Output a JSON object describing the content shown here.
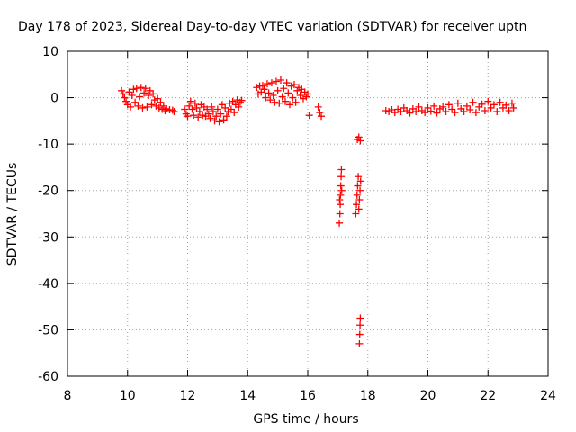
{
  "chart_data": {
    "type": "scatter",
    "title": "Day 178 of 2023, Sidereal Day-to-day VTEC variation (SDTVAR) for receiver uptn",
    "xlabel": "GPS time / hours",
    "ylabel": "SDTVAR / TECUs",
    "xlim": [
      8,
      24
    ],
    "ylim": [
      -60,
      10
    ],
    "xticks": [
      8,
      10,
      12,
      14,
      16,
      18,
      20,
      22,
      24
    ],
    "yticks": [
      10,
      0,
      -10,
      -20,
      -30,
      -40,
      -50,
      -60
    ],
    "grid": true,
    "marker": "+",
    "series": [
      {
        "name": "SDTVAR",
        "color": "#ff0000",
        "points": [
          [
            9.8,
            1.5
          ],
          [
            9.85,
            0.8
          ],
          [
            9.9,
            0.0
          ],
          [
            9.95,
            -0.8
          ],
          [
            10.0,
            -1.5
          ],
          [
            10.05,
            1.2
          ],
          [
            10.1,
            -2.0
          ],
          [
            10.15,
            0.5
          ],
          [
            10.2,
            1.8
          ],
          [
            10.25,
            -1.0
          ],
          [
            10.3,
            2.0
          ],
          [
            10.35,
            -1.8
          ],
          [
            10.4,
            0.2
          ],
          [
            10.45,
            2.2
          ],
          [
            10.5,
            -2.2
          ],
          [
            10.55,
            1.0
          ],
          [
            10.6,
            2.0
          ],
          [
            10.65,
            -2.0
          ],
          [
            10.7,
            0.5
          ],
          [
            10.75,
            1.5
          ],
          [
            10.8,
            -1.5
          ],
          [
            10.85,
            0.8
          ],
          [
            10.9,
            -0.5
          ],
          [
            10.95,
            -1.8
          ],
          [
            11.0,
            -0.2
          ],
          [
            11.05,
            -2.2
          ],
          [
            11.1,
            -1.0
          ],
          [
            11.15,
            -2.5
          ],
          [
            11.2,
            -1.8
          ],
          [
            11.25,
            -2.8
          ],
          [
            11.3,
            -2.4
          ],
          [
            11.4,
            -2.6
          ],
          [
            11.5,
            -2.7
          ],
          [
            11.55,
            -3.0
          ],
          [
            11.9,
            -2.5
          ],
          [
            11.95,
            -3.5
          ],
          [
            12.0,
            -4.0
          ],
          [
            12.05,
            -1.8
          ],
          [
            12.1,
            -0.8
          ],
          [
            12.15,
            -2.5
          ],
          [
            12.2,
            -3.8
          ],
          [
            12.25,
            -1.2
          ],
          [
            12.3,
            -2.2
          ],
          [
            12.35,
            -4.2
          ],
          [
            12.4,
            -3.0
          ],
          [
            12.45,
            -1.5
          ],
          [
            12.5,
            -3.8
          ],
          [
            12.55,
            -2.0
          ],
          [
            12.6,
            -4.0
          ],
          [
            12.65,
            -2.5
          ],
          [
            12.7,
            -3.5
          ],
          [
            12.75,
            -4.5
          ],
          [
            12.8,
            -2.0
          ],
          [
            12.85,
            -3.0
          ],
          [
            12.9,
            -5.0
          ],
          [
            12.95,
            -4.0
          ],
          [
            13.0,
            -2.5
          ],
          [
            13.05,
            -5.2
          ],
          [
            13.1,
            -3.5
          ],
          [
            13.15,
            -1.5
          ],
          [
            13.2,
            -4.8
          ],
          [
            13.25,
            -2.2
          ],
          [
            13.3,
            -4.0
          ],
          [
            13.35,
            -3.0
          ],
          [
            13.4,
            -1.2
          ],
          [
            13.45,
            -2.5
          ],
          [
            13.5,
            -0.8
          ],
          [
            13.55,
            -3.2
          ],
          [
            13.6,
            -1.5
          ],
          [
            13.65,
            -0.5
          ],
          [
            13.7,
            -2.0
          ],
          [
            13.75,
            -1.0
          ],
          [
            13.8,
            -0.6
          ],
          [
            14.3,
            2.2
          ],
          [
            14.35,
            0.8
          ],
          [
            14.4,
            2.5
          ],
          [
            14.45,
            1.2
          ],
          [
            14.5,
            2.6
          ],
          [
            14.55,
            1.8
          ],
          [
            14.6,
            0.0
          ],
          [
            14.65,
            3.0
          ],
          [
            14.7,
            1.0
          ],
          [
            14.75,
            -0.5
          ],
          [
            14.8,
            3.2
          ],
          [
            14.85,
            0.5
          ],
          [
            14.9,
            -1.0
          ],
          [
            14.95,
            3.5
          ],
          [
            15.0,
            1.5
          ],
          [
            15.05,
            -1.2
          ],
          [
            15.1,
            3.8
          ],
          [
            15.15,
            0.2
          ],
          [
            15.2,
            2.0
          ],
          [
            15.25,
            -0.8
          ],
          [
            15.3,
            3.2
          ],
          [
            15.35,
            1.0
          ],
          [
            15.4,
            -1.5
          ],
          [
            15.45,
            2.5
          ],
          [
            15.5,
            0.0
          ],
          [
            15.55,
            2.8
          ],
          [
            15.6,
            -1.0
          ],
          [
            15.65,
            1.5
          ],
          [
            15.7,
            2.2
          ],
          [
            15.75,
            0.5
          ],
          [
            15.8,
            1.8
          ],
          [
            15.85,
            -0.2
          ],
          [
            15.9,
            1.2
          ],
          [
            15.95,
            0.2
          ],
          [
            16.0,
            0.8
          ],
          [
            16.05,
            -3.8
          ],
          [
            16.35,
            -2.0
          ],
          [
            16.4,
            -3.2
          ],
          [
            16.45,
            -4.0
          ],
          [
            17.05,
            -27
          ],
          [
            17.07,
            -25
          ],
          [
            17.08,
            -23
          ],
          [
            17.09,
            -21
          ],
          [
            17.1,
            -19
          ],
          [
            17.11,
            -17
          ],
          [
            17.12,
            -15.5
          ],
          [
            17.06,
            -22
          ],
          [
            17.13,
            -20
          ],
          [
            17.6,
            -25
          ],
          [
            17.62,
            -23
          ],
          [
            17.64,
            -21
          ],
          [
            17.66,
            -19
          ],
          [
            17.68,
            -17
          ],
          [
            17.7,
            -24
          ],
          [
            17.72,
            -22
          ],
          [
            17.74,
            -20
          ],
          [
            17.76,
            -18
          ],
          [
            17.65,
            -9
          ],
          [
            17.7,
            -8.5
          ],
          [
            17.75,
            -9.3
          ],
          [
            17.72,
            -53
          ],
          [
            17.73,
            -51
          ],
          [
            17.74,
            -49
          ],
          [
            17.75,
            -47.5
          ],
          [
            18.6,
            -2.8
          ],
          [
            18.7,
            -3.0
          ],
          [
            18.8,
            -2.6
          ],
          [
            18.9,
            -3.2
          ],
          [
            19.0,
            -2.5
          ],
          [
            19.1,
            -3.0
          ],
          [
            19.2,
            -2.2
          ],
          [
            19.3,
            -2.8
          ],
          [
            19.4,
            -3.3
          ],
          [
            19.5,
            -2.4
          ],
          [
            19.6,
            -3.0
          ],
          [
            19.7,
            -2.0
          ],
          [
            19.8,
            -2.8
          ],
          [
            19.9,
            -3.2
          ],
          [
            20.0,
            -2.2
          ],
          [
            20.1,
            -2.9
          ],
          [
            20.2,
            -1.8
          ],
          [
            20.3,
            -3.3
          ],
          [
            20.4,
            -2.4
          ],
          [
            20.5,
            -2.0
          ],
          [
            20.6,
            -3.0
          ],
          [
            20.7,
            -1.5
          ],
          [
            20.8,
            -2.5
          ],
          [
            20.9,
            -3.2
          ],
          [
            21.0,
            -1.2
          ],
          [
            21.1,
            -2.4
          ],
          [
            21.2,
            -3.0
          ],
          [
            21.3,
            -1.8
          ],
          [
            21.4,
            -2.6
          ],
          [
            21.5,
            -1.0
          ],
          [
            21.6,
            -3.2
          ],
          [
            21.7,
            -2.0
          ],
          [
            21.8,
            -1.4
          ],
          [
            21.9,
            -2.8
          ],
          [
            22.0,
            -0.8
          ],
          [
            22.1,
            -2.2
          ],
          [
            22.2,
            -1.5
          ],
          [
            22.3,
            -3.0
          ],
          [
            22.4,
            -1.0
          ],
          [
            22.5,
            -2.2
          ],
          [
            22.6,
            -1.6
          ],
          [
            22.7,
            -2.8
          ],
          [
            22.8,
            -1.2
          ],
          [
            22.85,
            -2.2
          ]
        ]
      }
    ]
  }
}
